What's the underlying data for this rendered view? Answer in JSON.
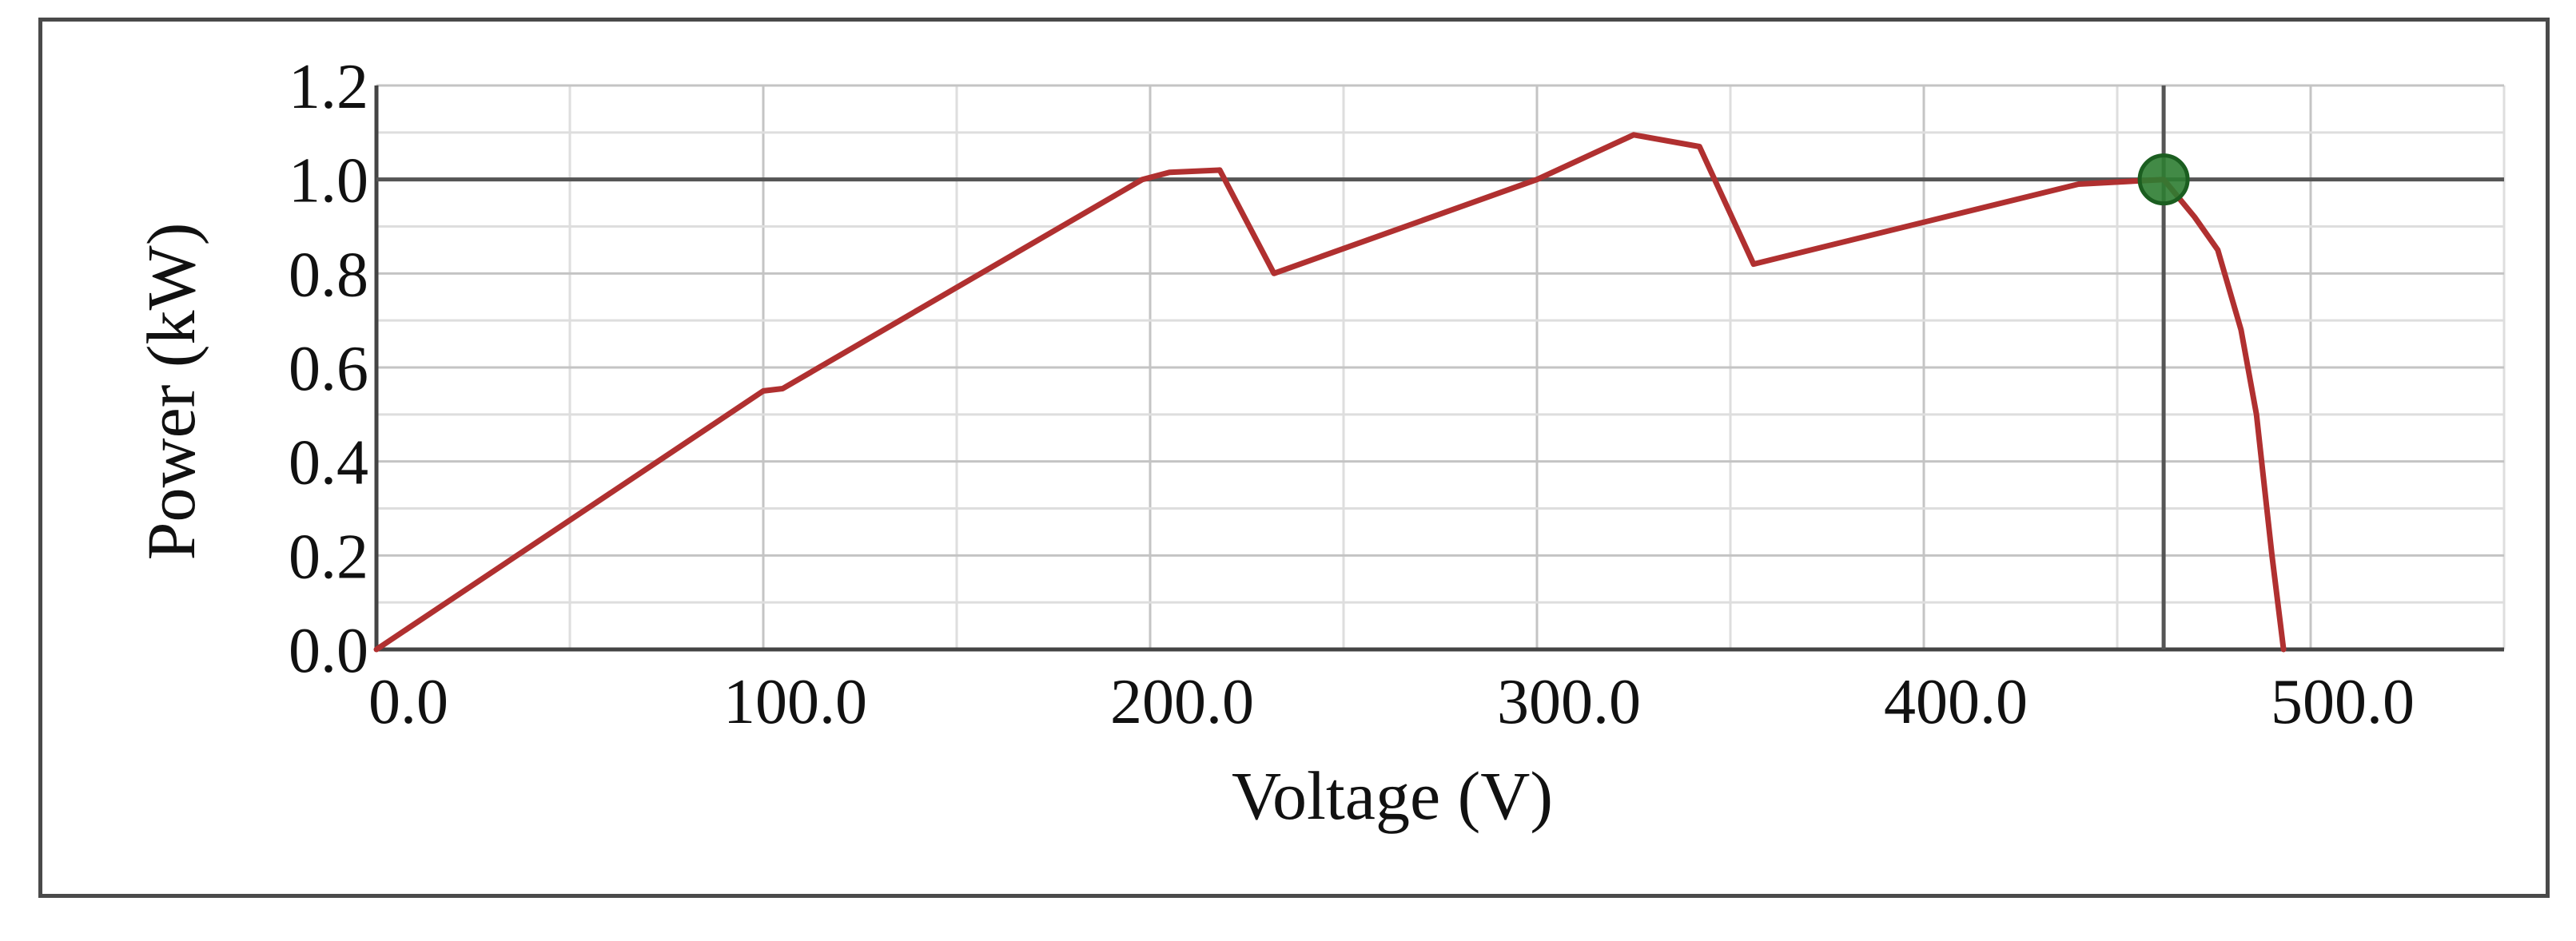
{
  "chart_data": {
    "type": "line",
    "xlabel": "Voltage (V)",
    "ylabel": "Power (kW)",
    "xlim": [
      0,
      550
    ],
    "ylim": [
      0,
      1.2
    ],
    "x_ticks": [
      "0.0",
      "100.0",
      "200.0",
      "300.0",
      "400.0",
      "500.0"
    ],
    "y_ticks": [
      "0.0",
      "0.2",
      "0.4",
      "0.6",
      "0.8",
      "1.0",
      "1.2"
    ],
    "grid": true,
    "series": [
      {
        "color": "#b03030",
        "points": [
          [
            0,
            0.0
          ],
          [
            100,
            0.55
          ],
          [
            105,
            0.555
          ],
          [
            198,
            1.0
          ],
          [
            205,
            1.015
          ],
          [
            218,
            1.02
          ],
          [
            232,
            0.8
          ],
          [
            300,
            1.0
          ],
          [
            325,
            1.095
          ],
          [
            342,
            1.07
          ],
          [
            356,
            0.82
          ],
          [
            440,
            0.99
          ],
          [
            462,
            1.0
          ],
          [
            470,
            0.92
          ],
          [
            476,
            0.85
          ],
          [
            482,
            0.68
          ],
          [
            486,
            0.5
          ],
          [
            490,
            0.2
          ],
          [
            493,
            0.0
          ]
        ]
      }
    ],
    "marker": {
      "x": 462,
      "y": 1.0,
      "color": "#2e7d32"
    },
    "crosshair": {
      "x": 462,
      "y": 1.0
    }
  }
}
